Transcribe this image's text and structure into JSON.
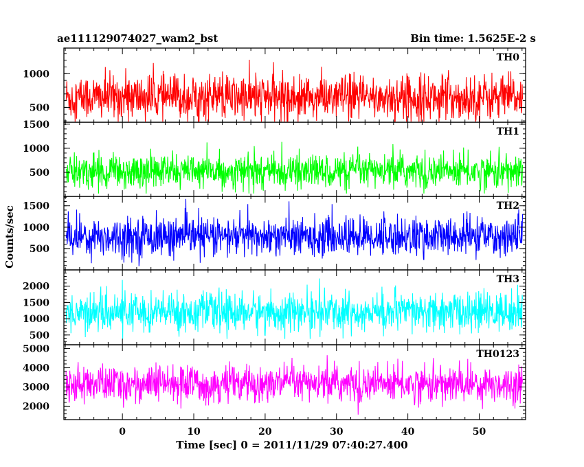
{
  "chart_data": {
    "type": "line",
    "title_left": "ae111129074027_wam2_bst",
    "title_right": "Bin time: 1.5625E-2 s",
    "xlabel": "Time [sec] 0 = 2011/11/29 07:40:27.400",
    "ylabel": "Counts/sec",
    "xlim": [
      -8.2,
      56.5
    ],
    "x_ticks": [
      0,
      10,
      20,
      30,
      40,
      50
    ],
    "x_tick_labels": [
      "0",
      "10",
      "20",
      "30",
      "40",
      "50"
    ],
    "x_data_range": [
      -7.9,
      56.1
    ],
    "panels": [
      {
        "name": "TH0",
        "color": "#ff0000",
        "ylim": [
          280,
          1380
        ],
        "y_ticks": [
          500,
          1000
        ],
        "y_tick_labels": [
          "500",
          "1000"
        ],
        "noise": {
          "mean": 650,
          "std": 170,
          "min": 180,
          "max": 1380
        }
      },
      {
        "name": "TH1",
        "color": "#00ff00",
        "ylim": [
          0,
          1540
        ],
        "y_ticks": [
          500,
          1000,
          1500
        ],
        "y_tick_labels": [
          "500",
          "1000",
          "1500"
        ],
        "noise": {
          "mean": 520,
          "std": 180,
          "min": 60,
          "max": 1540
        }
      },
      {
        "name": "TH2",
        "color": "#0000ff",
        "ylim": [
          0,
          1720
        ],
        "y_ticks": [
          500,
          1000,
          1500
        ],
        "y_tick_labels": [
          "500",
          "1000",
          "1500"
        ],
        "noise": {
          "mean": 780,
          "std": 230,
          "min": 0,
          "max": 1720
        }
      },
      {
        "name": "TH3",
        "color": "#00ffff",
        "ylim": [
          200,
          2500
        ],
        "y_ticks": [
          500,
          1000,
          1500,
          2000
        ],
        "y_tick_labels": [
          "500",
          "1000",
          "1500",
          "2000"
        ],
        "noise": {
          "mean": 1200,
          "std": 300,
          "min": 380,
          "max": 2500
        }
      },
      {
        "name": "TH0123",
        "color": "#ff00ff",
        "ylim": [
          1300,
          5200
        ],
        "y_ticks": [
          2000,
          3000,
          4000,
          5000
        ],
        "y_tick_labels": [
          "2000",
          "3000",
          "4000",
          "5000"
        ],
        "noise": {
          "mean": 3150,
          "std": 480,
          "min": 1500,
          "max": 5100
        }
      }
    ]
  }
}
